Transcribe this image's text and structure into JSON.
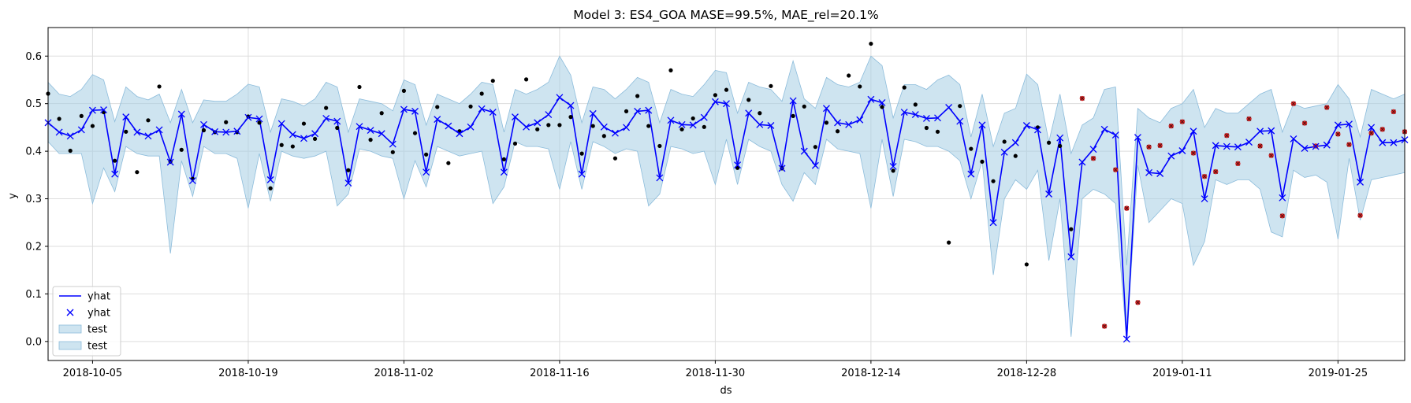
{
  "chart_data": {
    "type": "line",
    "title": "Model 3: ES4_GOA MASE=99.5%, MAE_rel=20.1%",
    "xlabel": "ds",
    "ylabel": "y",
    "x_start": "2018-10-01",
    "xlim": [
      "2018-10-01",
      "2019-01-31"
    ],
    "ylim": [
      -0.04,
      0.66
    ],
    "xticks": [
      {
        "date": "2018-10-05",
        "label": "2018-10-05"
      },
      {
        "date": "2018-10-19",
        "label": "2018-10-19"
      },
      {
        "date": "2018-11-02",
        "label": "2018-11-02"
      },
      {
        "date": "2018-11-16",
        "label": "2018-11-16"
      },
      {
        "date": "2018-11-30",
        "label": "2018-11-30"
      },
      {
        "date": "2018-12-14",
        "label": "2018-12-14"
      },
      {
        "date": "2018-12-28",
        "label": "2018-12-28"
      },
      {
        "date": "2019-01-11",
        "label": "2019-01-11"
      },
      {
        "date": "2019-01-25",
        "label": "2019-01-25"
      }
    ],
    "yticks": [
      {
        "value": 0.0,
        "label": "0.0"
      },
      {
        "value": 0.1,
        "label": "0.1"
      },
      {
        "value": 0.2,
        "label": "0.2"
      },
      {
        "value": 0.3,
        "label": "0.3"
      },
      {
        "value": 0.4,
        "label": "0.4"
      },
      {
        "value": 0.5,
        "label": "0.5"
      },
      {
        "value": 0.6,
        "label": "0.6"
      }
    ],
    "grid": true,
    "legend_position": "lower-left",
    "legend": [
      {
        "label": "yhat",
        "kind": "line",
        "color": "#0000ff"
      },
      {
        "label": "yhat",
        "kind": "marker",
        "color": "#0000ff"
      },
      {
        "label": "test",
        "kind": "band",
        "color": "#a6cee3"
      },
      {
        "label": "test",
        "kind": "band",
        "color": "#a6cee3"
      }
    ],
    "colors": {
      "yhat": "#0000ff",
      "band": "#a6cee3",
      "band_edge": "#8cbcdb",
      "train_points": "#000000",
      "test_points": "#d62728",
      "grid": "#dddddd"
    },
    "yhat": {
      "x": [
        "2018-10-01",
        "2018-10-02",
        "2018-10-03",
        "2018-10-04",
        "2018-10-05",
        "2018-10-06",
        "2018-10-07",
        "2018-10-08",
        "2018-10-09",
        "2018-10-10",
        "2018-10-11",
        "2018-10-12",
        "2018-10-13",
        "2018-10-14",
        "2018-10-15",
        "2018-10-16",
        "2018-10-17",
        "2018-10-18",
        "2018-10-19",
        "2018-10-20",
        "2018-10-21",
        "2018-10-22",
        "2018-10-23",
        "2018-10-24",
        "2018-10-25",
        "2018-10-26",
        "2018-10-27",
        "2018-10-28",
        "2018-10-29",
        "2018-10-30",
        "2018-10-31",
        "2018-11-01",
        "2018-11-02",
        "2018-11-03",
        "2018-11-04",
        "2018-11-05",
        "2018-11-06",
        "2018-11-07",
        "2018-11-08",
        "2018-11-09",
        "2018-11-10",
        "2018-11-11",
        "2018-11-12",
        "2018-11-13",
        "2018-11-14",
        "2018-11-15",
        "2018-11-16",
        "2018-11-17",
        "2018-11-18",
        "2018-11-19",
        "2018-11-20",
        "2018-11-21",
        "2018-11-22",
        "2018-11-23",
        "2018-11-24",
        "2018-11-25",
        "2018-11-26",
        "2018-11-27",
        "2018-11-28",
        "2018-11-29",
        "2018-11-30",
        "2018-12-01",
        "2018-12-02",
        "2018-12-03",
        "2018-12-04",
        "2018-12-05",
        "2018-12-06",
        "2018-12-07",
        "2018-12-08",
        "2018-12-09",
        "2018-12-10",
        "2018-12-11",
        "2018-12-12",
        "2018-12-13",
        "2018-12-14",
        "2018-12-15",
        "2018-12-16",
        "2018-12-17",
        "2018-12-18",
        "2018-12-19",
        "2018-12-20",
        "2018-12-21",
        "2018-12-22",
        "2018-12-23",
        "2018-12-24",
        "2018-12-25",
        "2018-12-26",
        "2018-12-27",
        "2018-12-28",
        "2018-12-29",
        "2018-12-30",
        "2018-12-31",
        "2019-01-01",
        "2019-01-02",
        "2019-01-03",
        "2019-01-04",
        "2019-01-05",
        "2019-01-06",
        "2019-01-07",
        "2019-01-08",
        "2019-01-09",
        "2019-01-10",
        "2019-01-11",
        "2019-01-12",
        "2019-01-13",
        "2019-01-14",
        "2019-01-15",
        "2019-01-16",
        "2019-01-17",
        "2019-01-18",
        "2019-01-19",
        "2019-01-20",
        "2019-01-21",
        "2019-01-22",
        "2019-01-23",
        "2019-01-24",
        "2019-01-25",
        "2019-01-26",
        "2019-01-27",
        "2019-01-28",
        "2019-01-29",
        "2019-01-30",
        "2019-01-31"
      ],
      "y": [
        0.46,
        0.44,
        0.432,
        0.445,
        0.486,
        0.487,
        0.352,
        0.472,
        0.44,
        0.432,
        0.445,
        0.377,
        0.478,
        0.338,
        0.456,
        0.441,
        0.44,
        0.442,
        0.471,
        0.468,
        0.34,
        0.458,
        0.435,
        0.427,
        0.437,
        0.469,
        0.463,
        0.333,
        0.452,
        0.444,
        0.437,
        0.415,
        0.488,
        0.484,
        0.356,
        0.467,
        0.453,
        0.437,
        0.451,
        0.489,
        0.482,
        0.356,
        0.472,
        0.451,
        0.46,
        0.477,
        0.513,
        0.496,
        0.352,
        0.479,
        0.451,
        0.438,
        0.45,
        0.484,
        0.486,
        0.344,
        0.465,
        0.456,
        0.455,
        0.471,
        0.504,
        0.5,
        0.371,
        0.48,
        0.456,
        0.454,
        0.364,
        0.506,
        0.4,
        0.37,
        0.49,
        0.46,
        0.456,
        0.466,
        0.509,
        0.502,
        0.368,
        0.482,
        0.477,
        0.469,
        0.47,
        0.492,
        0.463,
        0.352,
        0.455,
        0.25,
        0.398,
        0.418,
        0.454,
        0.445,
        0.31,
        0.428,
        0.178,
        0.377,
        0.404,
        0.446,
        0.434,
        0.005,
        0.429,
        0.355,
        0.353,
        0.39,
        0.401,
        0.442,
        0.3,
        0.412,
        0.41,
        0.409,
        0.419,
        0.442,
        0.443,
        0.302,
        0.426,
        0.406,
        0.41,
        0.413,
        0.455,
        0.457,
        0.335,
        0.45,
        0.418,
        0.418,
        0.424
      ]
    },
    "band": {
      "upper": [
        0.545,
        0.52,
        0.515,
        0.53,
        0.561,
        0.55,
        0.462,
        0.535,
        0.515,
        0.508,
        0.52,
        0.46,
        0.53,
        0.46,
        0.508,
        0.505,
        0.505,
        0.52,
        0.541,
        0.535,
        0.44,
        0.51,
        0.505,
        0.495,
        0.51,
        0.545,
        0.535,
        0.44,
        0.51,
        0.505,
        0.5,
        0.485,
        0.55,
        0.54,
        0.455,
        0.52,
        0.51,
        0.5,
        0.52,
        0.545,
        0.54,
        0.44,
        0.53,
        0.52,
        0.53,
        0.545,
        0.6,
        0.56,
        0.46,
        0.535,
        0.53,
        0.51,
        0.53,
        0.555,
        0.545,
        0.46,
        0.53,
        0.52,
        0.515,
        0.54,
        0.57,
        0.565,
        0.48,
        0.545,
        0.535,
        0.53,
        0.505,
        0.59,
        0.51,
        0.49,
        0.555,
        0.54,
        0.535,
        0.545,
        0.6,
        0.58,
        0.47,
        0.54,
        0.54,
        0.53,
        0.55,
        0.56,
        0.54,
        0.43,
        0.52,
        0.41,
        0.48,
        0.49,
        0.562,
        0.54,
        0.42,
        0.52,
        0.395,
        0.455,
        0.47,
        0.53,
        0.535,
        0.16,
        0.49,
        0.47,
        0.46,
        0.49,
        0.5,
        0.53,
        0.45,
        0.49,
        0.48,
        0.48,
        0.5,
        0.52,
        0.53,
        0.44,
        0.5,
        0.49,
        0.495,
        0.5,
        0.54,
        0.51,
        0.43,
        0.53,
        0.52,
        0.51,
        0.52
      ],
      "lower": [
        0.42,
        0.395,
        0.395,
        0.395,
        0.29,
        0.365,
        0.315,
        0.41,
        0.395,
        0.39,
        0.39,
        0.185,
        0.38,
        0.305,
        0.41,
        0.395,
        0.395,
        0.385,
        0.28,
        0.395,
        0.295,
        0.4,
        0.39,
        0.385,
        0.39,
        0.4,
        0.285,
        0.31,
        0.405,
        0.4,
        0.39,
        0.385,
        0.3,
        0.38,
        0.325,
        0.41,
        0.4,
        0.39,
        0.395,
        0.4,
        0.29,
        0.325,
        0.42,
        0.41,
        0.41,
        0.405,
        0.32,
        0.42,
        0.32,
        0.42,
        0.41,
        0.395,
        0.405,
        0.4,
        0.285,
        0.31,
        0.41,
        0.405,
        0.395,
        0.4,
        0.33,
        0.425,
        0.33,
        0.425,
        0.41,
        0.4,
        0.33,
        0.295,
        0.355,
        0.33,
        0.425,
        0.405,
        0.4,
        0.395,
        0.28,
        0.425,
        0.305,
        0.425,
        0.42,
        0.41,
        0.41,
        0.4,
        0.38,
        0.3,
        0.38,
        0.14,
        0.3,
        0.34,
        0.32,
        0.36,
        0.17,
        0.3,
        0.01,
        0.3,
        0.32,
        0.31,
        0.29,
        0.0,
        0.37,
        0.25,
        0.275,
        0.3,
        0.29,
        0.16,
        0.21,
        0.34,
        0.33,
        0.34,
        0.34,
        0.32,
        0.23,
        0.22,
        0.36,
        0.345,
        0.35,
        0.335,
        0.215,
        0.385,
        0.255,
        0.34,
        0.345,
        0.35,
        0.355
      ]
    },
    "train_points": {
      "x": [
        "2018-10-01",
        "2018-10-02",
        "2018-10-03",
        "2018-10-04",
        "2018-10-05",
        "2018-10-06",
        "2018-10-07",
        "2018-10-08",
        "2018-10-09",
        "2018-10-10",
        "2018-10-11",
        "2018-10-12",
        "2018-10-13",
        "2018-10-14",
        "2018-10-15",
        "2018-10-16",
        "2018-10-17",
        "2018-10-18",
        "2018-10-19",
        "2018-10-20",
        "2018-10-21",
        "2018-10-22",
        "2018-10-23",
        "2018-10-24",
        "2018-10-25",
        "2018-10-26",
        "2018-10-27",
        "2018-10-28",
        "2018-10-29",
        "2018-10-30",
        "2018-10-31",
        "2018-11-01",
        "2018-11-02",
        "2018-11-03",
        "2018-11-04",
        "2018-11-05",
        "2018-11-06",
        "2018-11-07",
        "2018-11-08",
        "2018-11-09",
        "2018-11-10",
        "2018-11-11",
        "2018-11-12",
        "2018-11-13",
        "2018-11-14",
        "2018-11-15",
        "2018-11-16",
        "2018-11-17",
        "2018-11-18",
        "2018-11-19",
        "2018-11-20",
        "2018-11-21",
        "2018-11-22",
        "2018-11-23",
        "2018-11-24",
        "2018-11-25",
        "2018-11-26",
        "2018-11-27",
        "2018-11-28",
        "2018-11-29",
        "2018-11-30",
        "2018-12-01",
        "2018-12-02",
        "2018-12-03",
        "2018-12-04",
        "2018-12-05",
        "2018-12-06",
        "2018-12-07",
        "2018-12-08",
        "2018-12-09",
        "2018-12-10",
        "2018-12-11",
        "2018-12-12",
        "2018-12-13",
        "2018-12-14",
        "2018-12-15",
        "2018-12-16",
        "2018-12-17",
        "2018-12-18",
        "2018-12-19",
        "2018-12-20",
        "2018-12-21",
        "2018-12-22",
        "2018-12-23",
        "2018-12-24",
        "2018-12-25",
        "2018-12-26",
        "2018-12-27",
        "2018-12-28",
        "2018-12-29",
        "2018-12-30",
        "2018-12-31",
        "2019-01-01"
      ],
      "y": [
        0.521,
        0.468,
        0.401,
        0.474,
        0.453,
        0.482,
        0.38,
        0.441,
        0.356,
        0.465,
        0.536,
        0.378,
        0.403,
        0.342,
        0.444,
        0.44,
        0.461,
        0.44,
        0.473,
        0.46,
        0.322,
        0.413,
        0.41,
        0.458,
        0.426,
        0.491,
        0.449,
        0.36,
        0.535,
        0.424,
        0.48,
        0.398,
        0.527,
        0.438,
        0.393,
        0.493,
        0.375,
        0.442,
        0.494,
        0.521,
        0.548,
        0.383,
        0.416,
        0.551,
        0.446,
        0.455,
        0.455,
        0.472,
        0.395,
        0.453,
        0.432,
        0.385,
        0.484,
        0.516,
        0.453,
        0.411,
        0.57,
        0.446,
        0.469,
        0.451,
        0.518,
        0.529,
        0.365,
        0.508,
        0.48,
        0.537,
        0.364,
        0.474,
        0.494,
        0.409,
        0.46,
        0.442,
        0.559,
        0.536,
        0.626,
        0.493,
        0.359,
        0.534,
        0.498,
        0.449,
        0.441,
        0.208,
        0.495,
        0.405,
        0.378,
        0.337,
        0.42,
        0.39,
        0.162,
        0.45,
        0.418,
        0.411,
        0.236
      ]
    },
    "test_points": {
      "x": [
        "2019-01-02",
        "2019-01-03",
        "2019-01-04",
        "2019-01-05",
        "2019-01-06",
        "2019-01-07",
        "2019-01-08",
        "2019-01-09",
        "2019-01-10",
        "2019-01-11",
        "2019-01-12",
        "2019-01-13",
        "2019-01-14",
        "2019-01-15",
        "2019-01-16",
        "2019-01-17",
        "2019-01-18",
        "2019-01-19",
        "2019-01-20",
        "2019-01-21",
        "2019-01-22",
        "2019-01-23",
        "2019-01-24",
        "2019-01-25",
        "2019-01-26",
        "2019-01-27",
        "2019-01-28",
        "2019-01-29",
        "2019-01-30",
        "2019-01-31"
      ],
      "y": [
        0.511,
        0.385,
        0.032,
        0.361,
        0.28,
        0.082,
        0.409,
        0.412,
        0.453,
        0.462,
        0.396,
        0.347,
        0.357,
        0.433,
        0.374,
        0.468,
        0.411,
        0.391,
        0.264,
        0.5,
        0.459,
        0.411,
        0.492,
        0.436,
        0.414,
        0.265,
        0.438,
        0.446,
        0.483,
        0.441
      ]
    }
  }
}
